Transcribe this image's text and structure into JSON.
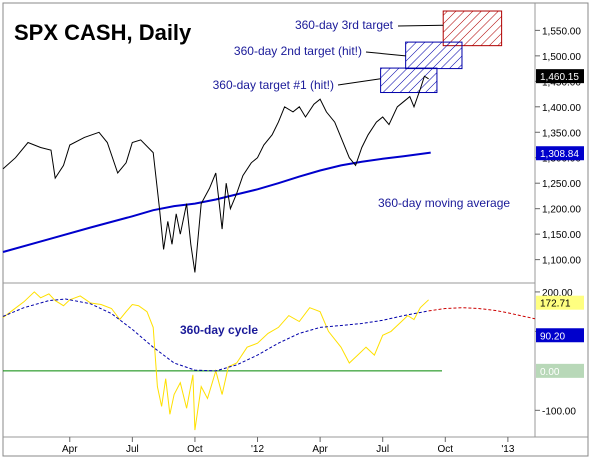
{
  "title": "SPX CASH, Daily",
  "chart_data": [
    {
      "type": "line",
      "panel": "price",
      "title": "SPX CASH, Daily",
      "y_ticks": [
        1100,
        1150,
        1200,
        1250,
        1300,
        1350,
        1400,
        1450,
        1500,
        1550
      ],
      "y_tick_labels": [
        "1,100.00",
        "1,150.00",
        "1,200.00",
        "1,250.00",
        "1,300.00",
        "1,350.00",
        "1,400.00",
        "1,450.00",
        "1,500.00",
        "1,550.00"
      ],
      "ylim": [
        1060,
        1590
      ],
      "x_ticks": [
        {
          "label": "Apr",
          "t": 2.0
        },
        {
          "label": "Jul",
          "t": 5.0
        },
        {
          "label": "Oct",
          "t": 8.0
        },
        {
          "label": "'12",
          "t": 11.0
        },
        {
          "label": "Apr",
          "t": 14.0
        },
        {
          "label": "Jul",
          "t": 17.0
        },
        {
          "label": "Oct",
          "t": 20.0
        },
        {
          "label": "'13",
          "t": 23.0
        }
      ],
      "xlim": [
        -1.2,
        24.3
      ],
      "series": [
        {
          "name": "SPX CASH",
          "color": "#000000",
          "points": [
            [
              -1.2,
              1278
            ],
            [
              -0.6,
              1300
            ],
            [
              0,
              1330
            ],
            [
              0.6,
              1320
            ],
            [
              1.1,
              1315
            ],
            [
              1.3,
              1260
            ],
            [
              1.7,
              1285
            ],
            [
              2.0,
              1325
            ],
            [
              2.7,
              1340
            ],
            [
              3.4,
              1350
            ],
            [
              3.8,
              1330
            ],
            [
              4.3,
              1270
            ],
            [
              4.7,
              1290
            ],
            [
              5.0,
              1330
            ],
            [
              5.4,
              1335
            ],
            [
              6.0,
              1310
            ],
            [
              6.3,
              1200
            ],
            [
              6.5,
              1120
            ],
            [
              6.7,
              1175
            ],
            [
              6.9,
              1130
            ],
            [
              7.1,
              1190
            ],
            [
              7.3,
              1150
            ],
            [
              7.6,
              1210
            ],
            [
              7.8,
              1130
            ],
            [
              8.0,
              1075
            ],
            [
              8.3,
              1210
            ],
            [
              8.7,
              1240
            ],
            [
              9.0,
              1270
            ],
            [
              9.3,
              1160
            ],
            [
              9.5,
              1250
            ],
            [
              9.7,
              1200
            ],
            [
              10.0,
              1230
            ],
            [
              10.3,
              1265
            ],
            [
              10.7,
              1290
            ],
            [
              11.0,
              1300
            ],
            [
              11.3,
              1325
            ],
            [
              11.7,
              1345
            ],
            [
              12.0,
              1370
            ],
            [
              12.3,
              1400
            ],
            [
              12.7,
              1390
            ],
            [
              13.0,
              1400
            ],
            [
              13.3,
              1380
            ],
            [
              13.7,
              1405
            ],
            [
              14.0,
              1415
            ],
            [
              14.3,
              1390
            ],
            [
              14.7,
              1370
            ],
            [
              15.0,
              1340
            ],
            [
              15.4,
              1300
            ],
            [
              15.7,
              1285
            ],
            [
              16.0,
              1320
            ],
            [
              16.3,
              1345
            ],
            [
              16.7,
              1370
            ],
            [
              17.0,
              1380
            ],
            [
              17.3,
              1365
            ],
            [
              17.7,
              1400
            ],
            [
              18.0,
              1410
            ],
            [
              18.3,
              1420
            ],
            [
              18.5,
              1400
            ],
            [
              18.8,
              1435
            ],
            [
              19.0,
              1460
            ],
            [
              19.2,
              1455
            ]
          ]
        },
        {
          "name": "360-day moving average",
          "color": "#0000CC",
          "points": [
            [
              -1.2,
              1115
            ],
            [
              1.0,
              1140
            ],
            [
              3.0,
              1163
            ],
            [
              5.0,
              1185
            ],
            [
              6.0,
              1197
            ],
            [
              7.0,
              1205
            ],
            [
              8.0,
              1210
            ],
            [
              9.0,
              1218
            ],
            [
              10.0,
              1228
            ],
            [
              11.0,
              1238
            ],
            [
              12.0,
              1250
            ],
            [
              13.0,
              1263
            ],
            [
              14.0,
              1275
            ],
            [
              15.0,
              1285
            ],
            [
              16.0,
              1292
            ],
            [
              17.0,
              1298
            ],
            [
              18.0,
              1303
            ],
            [
              19.3,
              1310
            ]
          ]
        }
      ],
      "target_zones": [
        {
          "label": "360-day 3rd target",
          "t0": 19.9,
          "t1": 22.7,
          "y0": 1520,
          "y1": 1588,
          "color": "#B00000"
        },
        {
          "label": "360-day 2nd target (hit!)",
          "t0": 18.1,
          "t1": 20.8,
          "y0": 1475,
          "y1": 1527,
          "color": "#0000AA"
        },
        {
          "label": "360-day target #1 (hit!)",
          "t0": 16.9,
          "t1": 19.6,
          "y0": 1428,
          "y1": 1476,
          "color": "#0000AA"
        }
      ],
      "annotations": [
        "360-day 3rd target",
        "360-day 2nd target (hit!)",
        "360-day target #1 (hit!)",
        "360-day moving average"
      ],
      "value_boxes": [
        {
          "label": "1,460.15",
          "value": 1460.15,
          "bg": "#000000",
          "fg": "#FFFFFF"
        },
        {
          "label": "1,308.84",
          "value": 1308.84,
          "bg": "#0000CC",
          "fg": "#FFFFFF"
        }
      ]
    },
    {
      "type": "line",
      "panel": "oscillator",
      "y_ticks": [
        200,
        100,
        -100
      ],
      "y_tick_labels": [
        "200.00",
        "100.00",
        "-100.00"
      ],
      "ylim": [
        -160,
        215
      ],
      "zero_line": 0,
      "annotations": [
        "360-day cycle"
      ],
      "series": [
        {
          "name": "oscillator",
          "color": "#FFE000",
          "points": [
            [
              -1.2,
              135
            ],
            [
              -0.7,
              155
            ],
            [
              -0.2,
              175
            ],
            [
              0.3,
              200
            ],
            [
              0.6,
              185
            ],
            [
              1.0,
              195
            ],
            [
              1.3,
              178
            ],
            [
              1.7,
              165
            ],
            [
              2.0,
              180
            ],
            [
              2.5,
              190
            ],
            [
              3.0,
              172
            ],
            [
              3.5,
              168
            ],
            [
              4.0,
              158
            ],
            [
              4.4,
              130
            ],
            [
              4.7,
              150
            ],
            [
              5.0,
              168
            ],
            [
              5.3,
              165
            ],
            [
              5.7,
              150
            ],
            [
              6.0,
              110
            ],
            [
              6.2,
              -40
            ],
            [
              6.4,
              -90
            ],
            [
              6.6,
              -20
            ],
            [
              6.8,
              -110
            ],
            [
              7.0,
              -60
            ],
            [
              7.3,
              -30
            ],
            [
              7.6,
              -95
            ],
            [
              7.9,
              -10
            ],
            [
              8.0,
              -150
            ],
            [
              8.3,
              -40
            ],
            [
              8.6,
              -70
            ],
            [
              9.0,
              0
            ],
            [
              9.3,
              -60
            ],
            [
              9.6,
              10
            ],
            [
              10.0,
              20
            ],
            [
              10.5,
              60
            ],
            [
              11.0,
              70
            ],
            [
              11.5,
              95
            ],
            [
              12.0,
              110
            ],
            [
              12.5,
              140
            ],
            [
              13.0,
              125
            ],
            [
              13.5,
              160
            ],
            [
              14.0,
              150
            ],
            [
              14.4,
              100
            ],
            [
              15.0,
              60
            ],
            [
              15.4,
              20
            ],
            [
              15.8,
              40
            ],
            [
              16.2,
              60
            ],
            [
              16.6,
              40
            ],
            [
              17.0,
              90
            ],
            [
              17.4,
              100
            ],
            [
              17.8,
              120
            ],
            [
              18.2,
              140
            ],
            [
              18.5,
              130
            ],
            [
              18.8,
              160
            ],
            [
              19.2,
              180
            ]
          ]
        },
        {
          "name": "cycle",
          "color": "#0000AA",
          "points": [
            [
              -1.2,
              138
            ],
            [
              -0.2,
              160
            ],
            [
              1.0,
              178
            ],
            [
              1.8,
              182
            ],
            [
              3.0,
              170
            ],
            [
              4.0,
              145
            ],
            [
              5.0,
              105
            ],
            [
              6.0,
              60
            ],
            [
              7.0,
              20
            ],
            [
              8.0,
              2
            ],
            [
              9.0,
              0
            ],
            [
              10.0,
              15
            ],
            [
              11.0,
              40
            ],
            [
              12.0,
              70
            ],
            [
              13.0,
              95
            ],
            [
              14.0,
              110
            ],
            [
              15.0,
              115
            ],
            [
              16.0,
              120
            ],
            [
              17.0,
              128
            ],
            [
              18.0,
              140
            ],
            [
              19.2,
              152
            ]
          ]
        },
        {
          "name": "cycle projection",
          "color": "#CC0000",
          "points": [
            [
              19.2,
              152
            ],
            [
              20.0,
              158
            ],
            [
              20.8,
              160
            ],
            [
              21.6,
              158
            ],
            [
              22.4,
              153
            ],
            [
              23.0,
              147
            ],
            [
              23.6,
              140
            ],
            [
              24.3,
              132
            ]
          ]
        }
      ],
      "value_boxes": [
        {
          "label": "172.71",
          "value": 172.71,
          "bg": "#FFFF80",
          "fg": "#000000"
        },
        {
          "label": "90.20",
          "value": 90.2,
          "bg": "#0000CC",
          "fg": "#FFFFFF"
        },
        {
          "label": "0.00",
          "value": 0,
          "bg": "#B8D8B8",
          "fg": "#FFFFFF"
        }
      ]
    }
  ]
}
